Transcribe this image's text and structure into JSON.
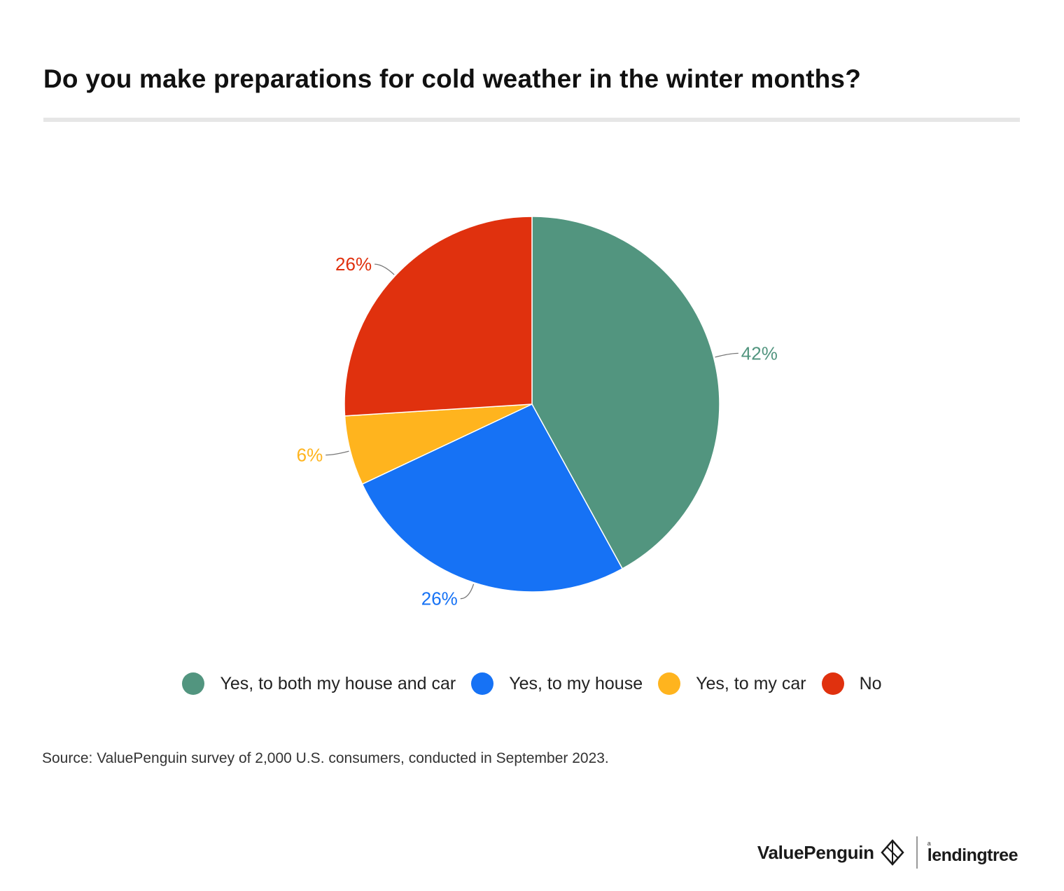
{
  "chart_data": {
    "type": "pie",
    "title": "Do you make preparations for cold weather in the winter months?",
    "categories": [
      "Yes, to both my house and car",
      "Yes, to my house",
      "Yes, to my car",
      "No"
    ],
    "values": [
      42,
      26,
      6,
      26
    ],
    "data_labels": [
      "42%",
      "26%",
      "6%",
      "26%"
    ],
    "colors": [
      "#52957f",
      "#1672f5",
      "#ffb41e",
      "#e0310e"
    ],
    "start_angle_deg": 0,
    "direction": "clockwise",
    "legend_position": "bottom"
  },
  "source": "Source: ValuePenguin survey of 2,000 U.S. consumers, conducted in September 2023.",
  "branding": {
    "valuepenguin": "ValuePenguin",
    "lendingtree_small": "a",
    "lendingtree": "lendingtree"
  }
}
